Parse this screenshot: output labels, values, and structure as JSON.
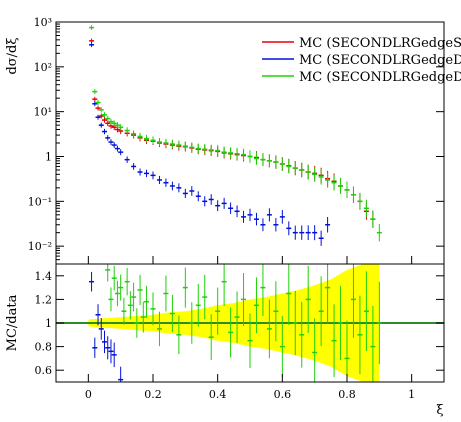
{
  "chart_data": [
    {
      "panel": "main",
      "type": "scatter",
      "ylabel": "dσ/dξ",
      "yscale": "log",
      "ylim": [
        0.004,
        1000
      ],
      "xlim": [
        -0.1,
        1.1
      ],
      "y_ticks": [
        {
          "value": 1000,
          "label": "10³"
        },
        {
          "value": 100,
          "label": "10²"
        },
        {
          "value": 10,
          "label": "10¹"
        },
        {
          "value": 1,
          "label": "1"
        },
        {
          "value": 0.1,
          "label": "10⁻¹"
        },
        {
          "value": 0.01,
          "label": "10⁻²"
        }
      ],
      "legend_position": "top-right",
      "series": [
        {
          "name": "MC (SECONDLRGedgeSi",
          "color": "#e8000b",
          "x": [
            0.01,
            0.02,
            0.03,
            0.04,
            0.05,
            0.06,
            0.07,
            0.08,
            0.09,
            0.1,
            0.12,
            0.14,
            0.16,
            0.18,
            0.2,
            0.22,
            0.24,
            0.26,
            0.28,
            0.3,
            0.32,
            0.34,
            0.36,
            0.38,
            0.4,
            0.42,
            0.44,
            0.46,
            0.48,
            0.5,
            0.52,
            0.54,
            0.56,
            0.58,
            0.6,
            0.62,
            0.64,
            0.66,
            0.68,
            0.7,
            0.72,
            0.74,
            0.76,
            0.78,
            0.8,
            0.82,
            0.84,
            0.86,
            0.88
          ],
          "y": [
            380,
            19,
            12,
            8,
            6.5,
            5.5,
            4.8,
            4.5,
            4.0,
            3.7,
            3.3,
            3.0,
            2.6,
            2.3,
            2.2,
            2.0,
            1.9,
            1.8,
            1.7,
            1.65,
            1.55,
            1.45,
            1.4,
            1.35,
            1.3,
            1.2,
            1.15,
            1.1,
            1.05,
            1.0,
            0.95,
            0.85,
            0.8,
            0.75,
            0.68,
            0.62,
            0.55,
            0.5,
            0.45,
            0.42,
            0.38,
            0.32,
            0.28,
            0.22,
            0.18,
            0.14,
            0.1,
            0.06,
            0.04
          ]
        },
        {
          "name": "MC (SECONDLRGedgeDo",
          "color": "#0010d8",
          "x": [
            0.01,
            0.02,
            0.03,
            0.04,
            0.05,
            0.06,
            0.07,
            0.08,
            0.09,
            0.1,
            0.12,
            0.14,
            0.16,
            0.18,
            0.2,
            0.22,
            0.24,
            0.26,
            0.28,
            0.3,
            0.32,
            0.34,
            0.36,
            0.38,
            0.4,
            0.42,
            0.44,
            0.46,
            0.48,
            0.5,
            0.52,
            0.54,
            0.56,
            0.58,
            0.6,
            0.62,
            0.64,
            0.66,
            0.68,
            0.7,
            0.72,
            0.74
          ],
          "y": [
            310,
            15,
            7.5,
            5.0,
            3.6,
            2.6,
            2.1,
            1.8,
            1.5,
            1.25,
            0.85,
            0.6,
            0.45,
            0.42,
            0.38,
            0.3,
            0.26,
            0.22,
            0.2,
            0.15,
            0.17,
            0.13,
            0.1,
            0.11,
            0.08,
            0.09,
            0.07,
            0.06,
            0.045,
            0.05,
            0.04,
            0.03,
            0.05,
            0.03,
            0.045,
            0.025,
            0.02,
            0.02,
            0.02,
            0.02,
            0.015,
            0.03
          ]
        },
        {
          "name": "MC (SECONDLRGedgeDi",
          "color": "#1ed00a",
          "x": [
            0.01,
            0.02,
            0.03,
            0.04,
            0.05,
            0.06,
            0.07,
            0.08,
            0.09,
            0.1,
            0.12,
            0.14,
            0.16,
            0.18,
            0.2,
            0.22,
            0.24,
            0.26,
            0.28,
            0.3,
            0.32,
            0.34,
            0.36,
            0.38,
            0.4,
            0.42,
            0.44,
            0.46,
            0.48,
            0.5,
            0.52,
            0.54,
            0.56,
            0.58,
            0.6,
            0.62,
            0.64,
            0.66,
            0.68,
            0.7,
            0.72,
            0.74,
            0.76,
            0.78,
            0.8,
            0.82,
            0.84,
            0.86,
            0.88,
            0.9
          ],
          "y": [
            750,
            28,
            16,
            11,
            8.5,
            7.0,
            6.0,
            5.5,
            5.0,
            4.5,
            3.8,
            3.2,
            2.8,
            2.5,
            2.3,
            2.1,
            2.0,
            1.9,
            1.8,
            1.7,
            1.6,
            1.5,
            1.45,
            1.4,
            1.35,
            1.25,
            1.2,
            1.15,
            1.1,
            1.0,
            0.9,
            0.85,
            0.8,
            0.75,
            0.68,
            0.6,
            0.55,
            0.5,
            0.45,
            0.4,
            0.35,
            0.3,
            0.26,
            0.22,
            0.18,
            0.14,
            0.1,
            0.07,
            0.04,
            0.02
          ]
        }
      ]
    },
    {
      "panel": "ratio",
      "type": "scatter",
      "ylabel": "MC/data",
      "xlabel": "ξ",
      "ylim": [
        0.5,
        1.5
      ],
      "xlim": [
        -0.1,
        1.1
      ],
      "y_ticks": [
        {
          "value": 1.4,
          "label": "1.4"
        },
        {
          "value": 1.2,
          "label": "1.2"
        },
        {
          "value": 1.0,
          "label": "1"
        },
        {
          "value": 0.8,
          "label": "0.8"
        },
        {
          "value": 0.6,
          "label": "0.6"
        }
      ],
      "x_ticks": [
        {
          "value": 0,
          "label": "0"
        },
        {
          "value": 0.2,
          "label": "0.2"
        },
        {
          "value": 0.4,
          "label": "0.4"
        },
        {
          "value": 0.6,
          "label": "0.6"
        },
        {
          "value": 0.8,
          "label": "0.8"
        },
        {
          "value": 1.0,
          "label": "1"
        }
      ],
      "uncertainty_band": {
        "color": "#ffff00",
        "x": [
          0.0,
          0.05,
          0.1,
          0.15,
          0.2,
          0.25,
          0.3,
          0.35,
          0.4,
          0.45,
          0.5,
          0.55,
          0.6,
          0.65,
          0.7,
          0.75,
          0.8,
          0.85,
          0.9
        ],
        "half_width": [
          0.03,
          0.04,
          0.05,
          0.06,
          0.07,
          0.09,
          0.1,
          0.12,
          0.15,
          0.17,
          0.2,
          0.22,
          0.25,
          0.28,
          0.32,
          0.37,
          0.45,
          0.5,
          0.5
        ]
      },
      "reference_line": {
        "value": 1.0,
        "color": "#2e8b2e"
      },
      "series": [
        {
          "name": "MC (SECONDLRGedgeDo",
          "color": "#0010d8",
          "x": [
            0.01,
            0.02,
            0.03,
            0.04,
            0.05,
            0.06,
            0.07,
            0.08,
            0.1
          ],
          "y": [
            1.35,
            0.79,
            1.07,
            0.95,
            0.84,
            0.79,
            0.76,
            0.73,
            0.52
          ]
        },
        {
          "name": "MC (SECONDLRGedgeDi",
          "color": "#1ed00a",
          "x": [
            0.06,
            0.07,
            0.08,
            0.09,
            0.1,
            0.11,
            0.12,
            0.13,
            0.14,
            0.15,
            0.16,
            0.17,
            0.18,
            0.2,
            0.22,
            0.24,
            0.26,
            0.28,
            0.3,
            0.32,
            0.34,
            0.36,
            0.38,
            0.4,
            0.42,
            0.44,
            0.46,
            0.48,
            0.5,
            0.52,
            0.54,
            0.56,
            0.58,
            0.6,
            0.62,
            0.64,
            0.66,
            0.68,
            0.7,
            0.72,
            0.74,
            0.76,
            0.78,
            0.8,
            0.82,
            0.84,
            0.86,
            0.88,
            0.9
          ],
          "y": [
            1.45,
            1.2,
            1.38,
            1.25,
            1.3,
            1.1,
            1.35,
            1.15,
            1.22,
            1.0,
            1.28,
            1.05,
            1.18,
            1.12,
            0.95,
            1.25,
            1.08,
            0.9,
            1.3,
            1.0,
            1.15,
            1.22,
            0.88,
            1.1,
            1.35,
            0.92,
            1.05,
            1.2,
            0.85,
            1.15,
            1.3,
            0.95,
            1.1,
            0.8,
            1.25,
            1.0,
            0.9,
            1.2,
            0.75,
            1.1,
            1.3,
            0.85,
            1.0,
            0.7,
            1.2,
            0.9,
            1.1,
            0.8,
            1.0
          ]
        }
      ]
    }
  ]
}
